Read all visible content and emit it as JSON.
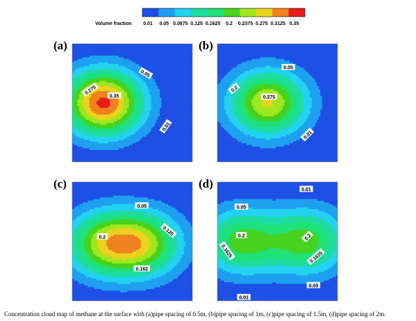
{
  "caption": "Concentration cloud map of methane at the surface with (a)pipe spacing of 0.5m, (b)pipe spacing of 1m, (c)pipe spacing of 1.5m, (d)pipe spacing of 2m.",
  "chart_data": {
    "type": "heatmap",
    "colorbar": {
      "title": "Volume fraction",
      "levels": [
        0.01,
        0.05,
        0.0875,
        0.125,
        0.1625,
        0.2,
        0.2375,
        0.275,
        0.3125,
        0.35
      ],
      "tick_labels": [
        "0.01",
        "0.05",
        "0.0875",
        "0.125",
        "0.1625",
        "0.2",
        "0.2375",
        "0.275",
        "0.3125",
        "0.35"
      ],
      "colors": [
        "#1e50e6",
        "#1ea0f0",
        "#23d2f0",
        "#1edca0",
        "#1ee178",
        "#46d21e",
        "#a0e61e",
        "#ebd21e",
        "#f0821e",
        "#e61e1e"
      ]
    },
    "panels": [
      {
        "label": "(a)",
        "sources": [
          {
            "x": 0.26,
            "y": 0.5,
            "peak": 0.36
          }
        ],
        "contour_labels": [
          {
            "text": "0.35",
            "x": 0.35,
            "y": 0.44,
            "angle": 0
          },
          {
            "text": "0.275",
            "x": 0.15,
            "y": 0.39,
            "angle": -35
          },
          {
            "text": "0.05",
            "x": 0.61,
            "y": 0.25,
            "angle": 30
          },
          {
            "text": "0.01",
            "x": 0.78,
            "y": 0.7,
            "angle": -55
          }
        ]
      },
      {
        "label": "(b)",
        "sources": [
          {
            "x": 0.42,
            "y": 0.5,
            "peak": 0.28
          }
        ],
        "contour_labels": [
          {
            "text": "0.275",
            "x": 0.43,
            "y": 0.45,
            "angle": 0
          },
          {
            "text": "0.2",
            "x": 0.14,
            "y": 0.38,
            "angle": -40
          },
          {
            "text": "0.05",
            "x": 0.59,
            "y": 0.2,
            "angle": 0
          },
          {
            "text": "0.01",
            "x": 0.75,
            "y": 0.77,
            "angle": -45
          }
        ]
      },
      {
        "label": "(c)",
        "sources": [
          {
            "x": 0.26,
            "y": 0.52,
            "peak": 0.23
          },
          {
            "x": 0.6,
            "y": 0.52,
            "peak": 0.23
          }
        ],
        "contour_labels": [
          {
            "text": "0.05",
            "x": 0.58,
            "y": 0.2,
            "angle": 0
          },
          {
            "text": "0.2",
            "x": 0.25,
            "y": 0.46,
            "angle": 0
          },
          {
            "text": "0.125",
            "x": 0.8,
            "y": 0.41,
            "angle": 40
          },
          {
            "text": "0.162",
            "x": 0.58,
            "y": 0.73,
            "angle": 0
          }
        ]
      },
      {
        "label": "(d)",
        "sources": [
          {
            "x": 0.2,
            "y": 0.5,
            "peak": 0.215
          },
          {
            "x": 0.75,
            "y": 0.5,
            "peak": 0.215
          }
        ],
        "contour_labels": [
          {
            "text": "0.01",
            "x": 0.74,
            "y": 0.06,
            "angle": 0
          },
          {
            "text": "0.05",
            "x": 0.2,
            "y": 0.21,
            "angle": 0
          },
          {
            "text": "0.2",
            "x": 0.2,
            "y": 0.45,
            "angle": 0
          },
          {
            "text": "0.2",
            "x": 0.75,
            "y": 0.46,
            "angle": -45
          },
          {
            "text": "0.1625",
            "x": 0.08,
            "y": 0.58,
            "angle": 55
          },
          {
            "text": "0.1625",
            "x": 0.82,
            "y": 0.63,
            "angle": -40
          },
          {
            "text": "0.05",
            "x": 0.8,
            "y": 0.87,
            "angle": 0
          },
          {
            "text": "0.01",
            "x": 0.22,
            "y": 0.97,
            "angle": 0
          }
        ]
      }
    ]
  }
}
